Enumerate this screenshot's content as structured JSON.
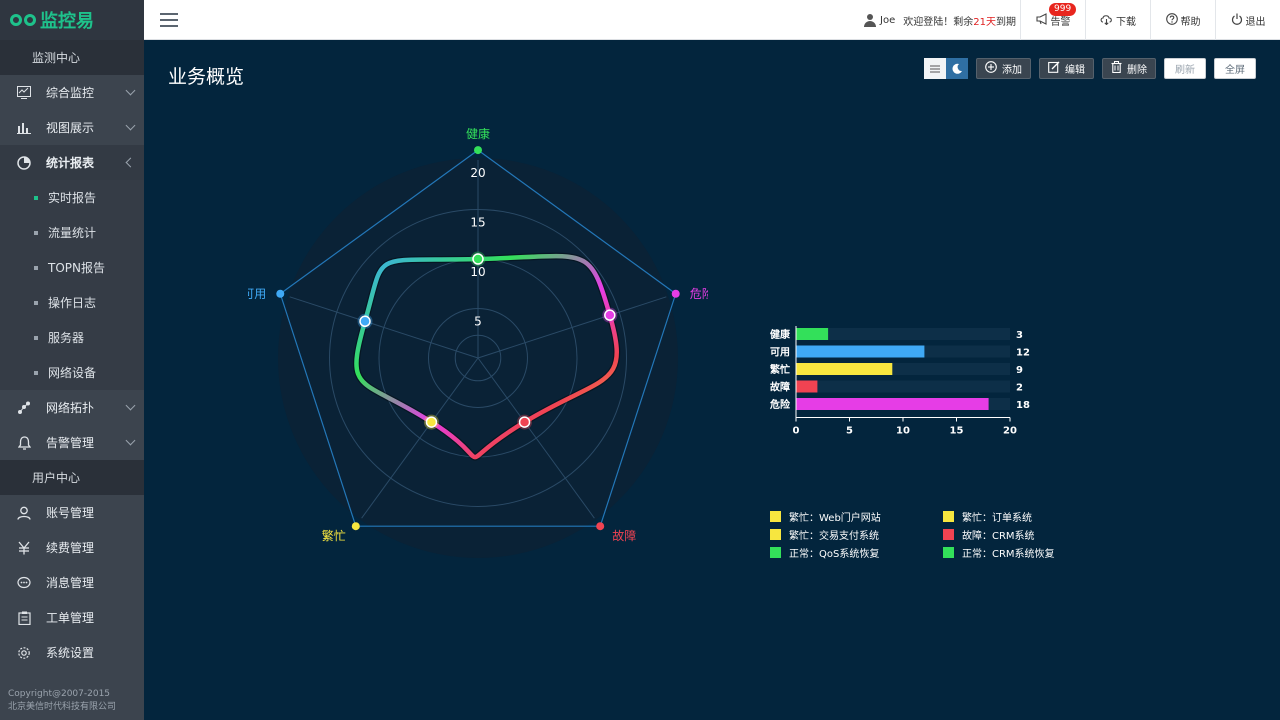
{
  "app": {
    "logo_text": "监控易"
  },
  "sidebar": {
    "section_monitor": "监测中心",
    "items": [
      {
        "label": "综合监控",
        "icon": "monitor-icon"
      },
      {
        "label": "视图展示",
        "icon": "bar-chart-icon"
      },
      {
        "label": "统计报表",
        "icon": "pie-chart-icon"
      }
    ],
    "sub_items": [
      {
        "label": "实时报告"
      },
      {
        "label": "流量统计"
      },
      {
        "label": "TOPN报告"
      },
      {
        "label": "操作日志"
      },
      {
        "label": "服务器"
      },
      {
        "label": "网络设备"
      }
    ],
    "items2": [
      {
        "label": "网络拓扑",
        "icon": "topology-icon"
      },
      {
        "label": "告警管理",
        "icon": "bell-icon"
      }
    ],
    "section_user": "用户中心",
    "user_items": [
      {
        "label": "账号管理",
        "icon": "user-icon"
      },
      {
        "label": "续费管理",
        "icon": "yen-icon"
      },
      {
        "label": "消息管理",
        "icon": "message-icon"
      },
      {
        "label": "工单管理",
        "icon": "clipboard-icon"
      },
      {
        "label": "系统设置",
        "icon": "gear-icon"
      }
    ],
    "copyright_line1": "Copyright@2007-2015",
    "copyright_line2": "北京美信时代科技有限公司"
  },
  "topbar": {
    "username": "Joe",
    "welcome_prefix": "欢迎登陆！剩余",
    "days_left": "21天",
    "welcome_suffix": "到期",
    "alarm_label": "告警",
    "alarm_badge": "999",
    "download_label": "下载",
    "help_label": "帮助",
    "logout_label": "退出"
  },
  "main": {
    "title": "业务概览",
    "toolbar": {
      "add_label": "添加",
      "edit_label": "编辑",
      "delete_label": "删除",
      "refresh_label": "刷新",
      "fullscreen_label": "全屏"
    }
  },
  "colors": {
    "health": "#33e05a",
    "available": "#3fa9f5",
    "busy": "#f7e63f",
    "fault": "#f04352",
    "danger": "#e63de6"
  },
  "chart_data": [
    {
      "type": "radar",
      "indicators": [
        "健康",
        "危险",
        "故障",
        "繁忙",
        "可用"
      ],
      "max": 20,
      "ticks": [
        "5",
        "10",
        "15",
        "20"
      ],
      "values": [
        10,
        14,
        8,
        8,
        12
      ]
    },
    {
      "type": "bar",
      "orientation": "horizontal",
      "categories": [
        "健康",
        "可用",
        "繁忙",
        "故障",
        "危险"
      ],
      "values": [
        3,
        12,
        9,
        2,
        18
      ],
      "xlim": [
        0,
        20
      ],
      "xticks": [
        "0",
        "5",
        "10",
        "15",
        "20"
      ]
    }
  ],
  "legend": [
    {
      "label": "繁忙：Web门户网站",
      "color": "#f7e63f"
    },
    {
      "label": "繁忙：订单系统",
      "color": "#f7e63f"
    },
    {
      "label": "繁忙：交易支付系统",
      "color": "#f7e63f"
    },
    {
      "label": "故障：CRM系统",
      "color": "#f04352"
    },
    {
      "label": "正常：QoS系统恢复",
      "color": "#33e05a"
    },
    {
      "label": "正常：CRM系统恢复",
      "color": "#33e05a"
    }
  ]
}
